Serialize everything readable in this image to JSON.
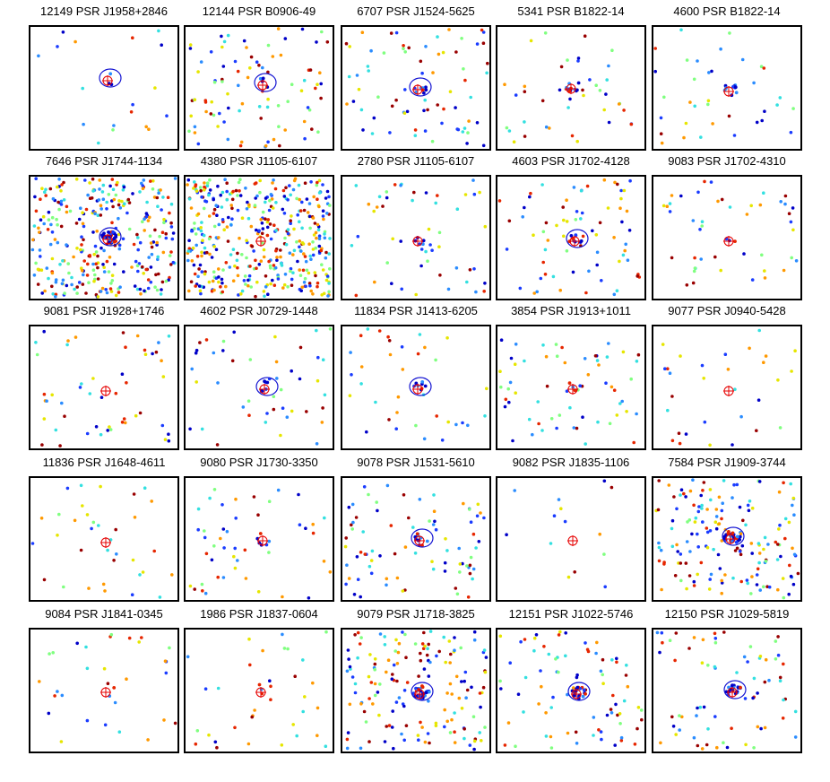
{
  "chart_data": {
    "type": "scatter",
    "grid": false,
    "legend": "none",
    "marker_colors": [
      "#0000c8",
      "#1a3cff",
      "#2a8cff",
      "#33e0e0",
      "#80ff80",
      "#e6e600",
      "#ff9900",
      "#e62600",
      "#990000"
    ],
    "circle_colors": {
      "blue": "#1414d2",
      "red": "#e60000"
    },
    "panels": [
      {
        "title": "12149 PSR J1958+2846",
        "n_points": 18,
        "cluster": 3,
        "blue_circle": true,
        "red_circle": true
      },
      {
        "title": "12144 PSR B0906-49",
        "n_points": 90,
        "cluster": 4,
        "blue_circle": true,
        "red_circle": true
      },
      {
        "title": "6707 PSR J1524-5625",
        "n_points": 70,
        "cluster": 8,
        "blue_circle": true,
        "red_circle": true
      },
      {
        "title": "5341 PSR B1822-14",
        "n_points": 40,
        "cluster": 12,
        "blue_circle": false,
        "red_circle": true
      },
      {
        "title": "4600 PSR B1822-14",
        "n_points": 35,
        "cluster": 10,
        "blue_circle": false,
        "red_circle": true
      },
      {
        "title": "7646 PSR J1744-1134",
        "n_points": 320,
        "cluster": 35,
        "blue_circle": true,
        "red_circle": true
      },
      {
        "title": "4380 PSR J1105-6107",
        "n_points": 420,
        "cluster": 0,
        "blue_circle": false,
        "red_circle": true
      },
      {
        "title": "2780 PSR J1105-6107",
        "n_points": 50,
        "cluster": 5,
        "blue_circle": false,
        "red_circle": true
      },
      {
        "title": "4603 PSR J1702-4128",
        "n_points": 70,
        "cluster": 10,
        "blue_circle": true,
        "red_circle": true
      },
      {
        "title": "9083 PSR J1702-4310",
        "n_points": 45,
        "cluster": 3,
        "blue_circle": false,
        "red_circle": true
      },
      {
        "title": "9081 PSR J1928+1746",
        "n_points": 50,
        "cluster": 0,
        "blue_circle": false,
        "red_circle": true
      },
      {
        "title": "4602 PSR J0729-1448",
        "n_points": 45,
        "cluster": 6,
        "blue_circle": true,
        "red_circle": true
      },
      {
        "title": "11834 PSR J1413-6205",
        "n_points": 35,
        "cluster": 8,
        "blue_circle": true,
        "red_circle": true
      },
      {
        "title": "3854 PSR J1913+1011",
        "n_points": 60,
        "cluster": 4,
        "blue_circle": false,
        "red_circle": true
      },
      {
        "title": "9077 PSR J0940-5428",
        "n_points": 30,
        "cluster": 0,
        "blue_circle": false,
        "red_circle": true
      },
      {
        "title": "11836 PSR J1648-4611",
        "n_points": 35,
        "cluster": 0,
        "blue_circle": false,
        "red_circle": true
      },
      {
        "title": "9080 PSR J1730-3350",
        "n_points": 45,
        "cluster": 6,
        "blue_circle": false,
        "red_circle": true
      },
      {
        "title": "9078 PSR J1531-5610",
        "n_points": 80,
        "cluster": 10,
        "blue_circle": true,
        "red_circle": true
      },
      {
        "title": "9082 PSR J1835-1106",
        "n_points": 14,
        "cluster": 0,
        "blue_circle": false,
        "red_circle": true
      },
      {
        "title": "7584 PSR J1909-3744",
        "n_points": 160,
        "cluster": 25,
        "blue_circle": true,
        "red_circle": true
      },
      {
        "title": "9084 PSR J1841-0345",
        "n_points": 30,
        "cluster": 2,
        "blue_circle": false,
        "red_circle": true
      },
      {
        "title": "1986 PSR J1837-0604",
        "n_points": 35,
        "cluster": 2,
        "blue_circle": false,
        "red_circle": true
      },
      {
        "title": "9079 PSR J1718-3825",
        "n_points": 150,
        "cluster": 30,
        "blue_circle": true,
        "red_circle": true
      },
      {
        "title": "12151 PSR J1022-5746",
        "n_points": 80,
        "cluster": 18,
        "blue_circle": true,
        "red_circle": true
      },
      {
        "title": "12150 PSR J1029-5819",
        "n_points": 70,
        "cluster": 20,
        "blue_circle": true,
        "red_circle": true
      }
    ]
  }
}
